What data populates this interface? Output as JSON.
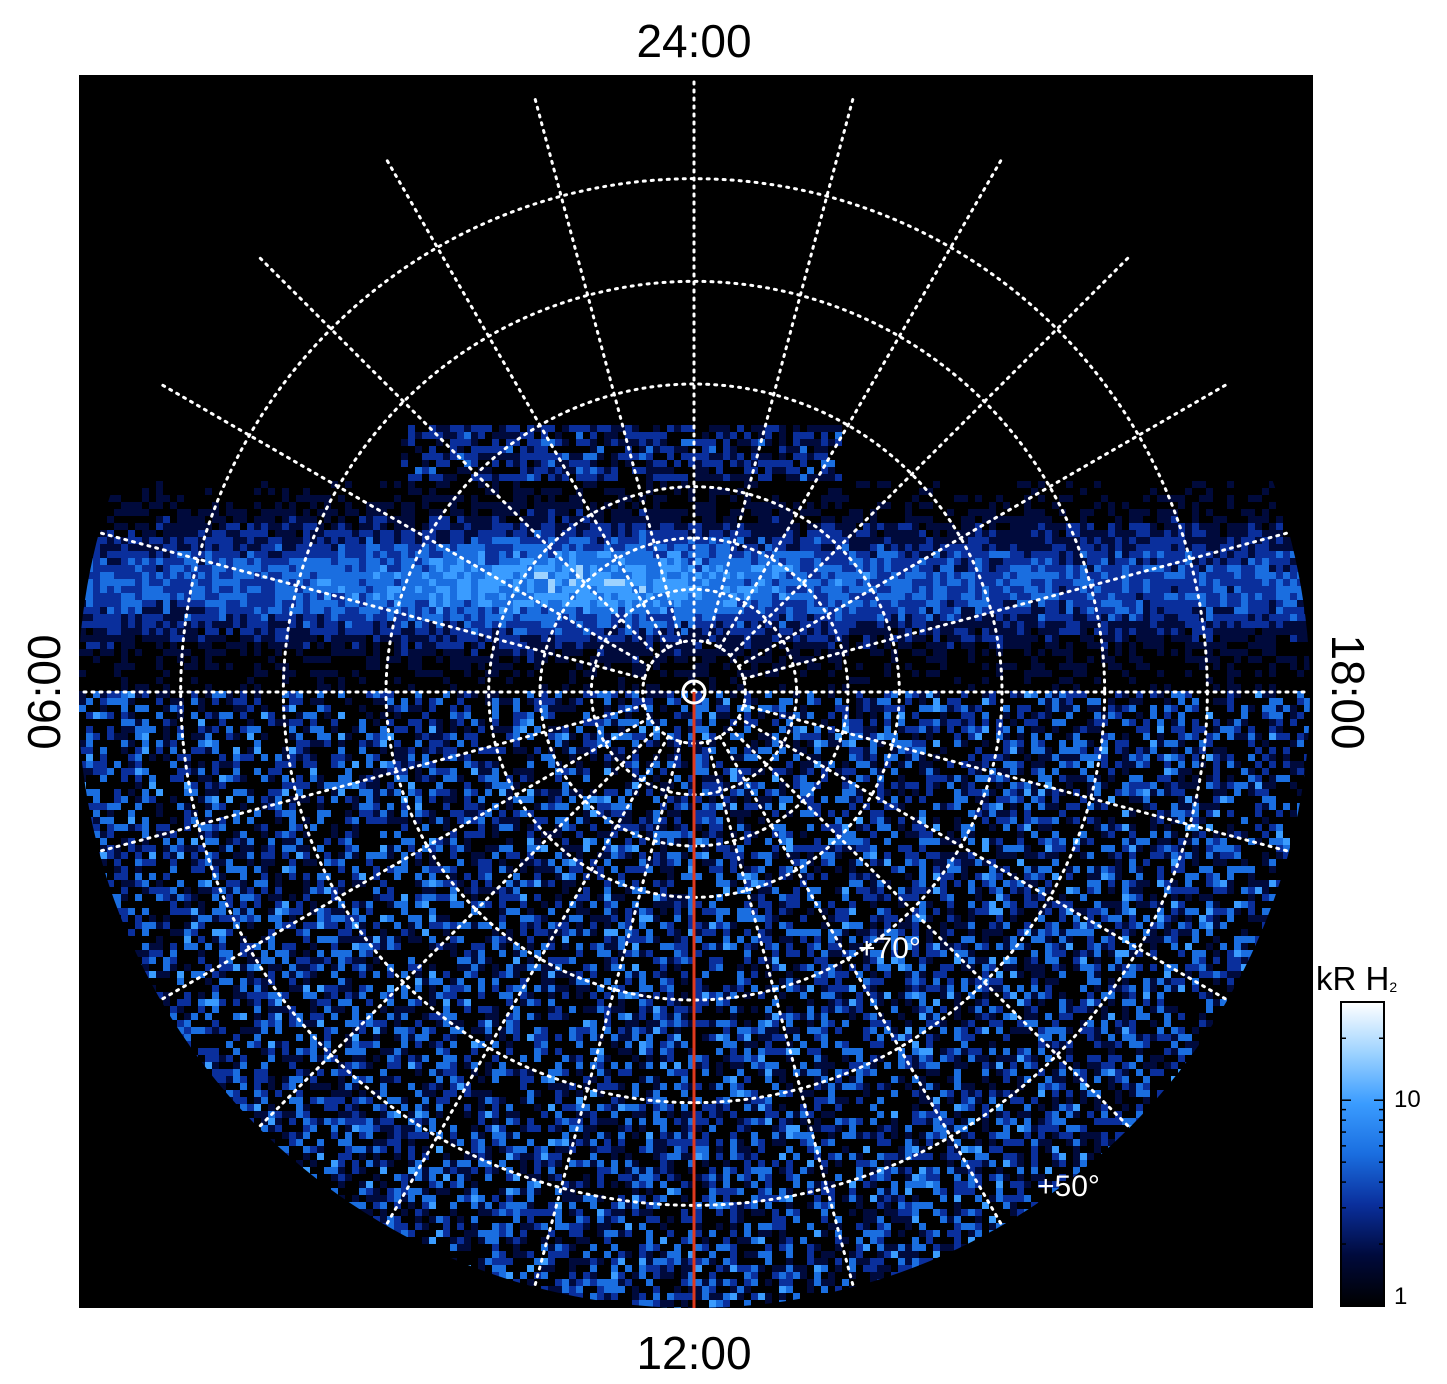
{
  "chart_data": {
    "type": "heatmap",
    "projection": "polar",
    "local_time_labels": {
      "top": "24:00",
      "bottom": "12:00",
      "left": "06:00",
      "right": "18:00"
    },
    "latitude_labels": [
      "+70°",
      "+50°"
    ],
    "latitude_circles_deg": [
      85,
      80,
      75,
      70,
      60,
      50,
      40
    ],
    "meridian_step_hours": 1,
    "grid": true,
    "grid_style": "white dotted",
    "colorbar": {
      "title": "kR H",
      "title_subscript": "2",
      "scale": "log",
      "range": [
        1,
        30
      ],
      "ticks": [
        1,
        10
      ],
      "tick_labels": [
        "1",
        "10"
      ],
      "colors": [
        "#000000",
        "#000a3c",
        "#0a2f9c",
        "#1a6ee0",
        "#3a9cff",
        "#9ed3ff",
        "#ffffff"
      ]
    },
    "meridian_marker": {
      "local_time": "12:00",
      "color": "#e0391d"
    },
    "emission_features": [
      {
        "name": "main auroral band",
        "local_time_range": [
          "04:00",
          "20:00"
        ],
        "peak_kR": 25
      },
      {
        "name": "dayside emission",
        "local_time_range": [
          "06:00",
          "18:00"
        ],
        "typical_kR": 3
      }
    ]
  }
}
